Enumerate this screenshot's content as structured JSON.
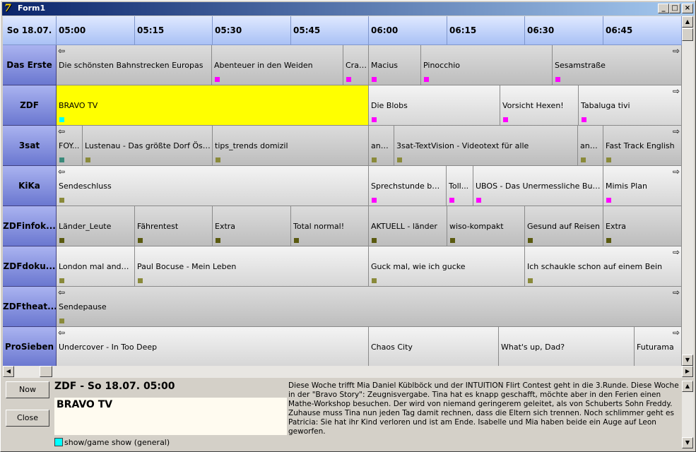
{
  "window": {
    "title": "Form1"
  },
  "grid": {
    "date": "So 18.07.",
    "times": [
      "05:00",
      "05:15",
      "05:30",
      "05:45",
      "06:00",
      "06:15",
      "06:30",
      "06:45"
    ],
    "channels": [
      {
        "name": "Das Erste",
        "left_arrow": true,
        "right_arrow": true,
        "programs": [
          {
            "title": "Die schönsten Bahnstrecken Europas",
            "marker": null,
            "shade": "dark"
          },
          {
            "title": "Abenteuer in den Weiden",
            "marker": "#ff00ff",
            "shade": "dark"
          },
          {
            "title": "Craz...",
            "marker": "#ff00ff",
            "shade": "dark"
          },
          {
            "title": "Macius",
            "marker": "#ff00ff",
            "shade": "dark"
          },
          {
            "title": "Pinocchio",
            "marker": "#ff00ff",
            "shade": "dark"
          },
          {
            "title": "Sesamstraße",
            "marker": "#ff00ff",
            "shade": "dark"
          }
        ]
      },
      {
        "name": "ZDF",
        "left_arrow": false,
        "right_arrow": true,
        "programs": [
          {
            "title": "BRAVO TV",
            "marker": "#00ffff",
            "shade": "selected"
          },
          {
            "title": "Die Blobs",
            "marker": "#ff00ff",
            "shade": "light"
          },
          {
            "title": "Vorsicht Hexen!",
            "marker": "#ff00ff",
            "shade": "light"
          },
          {
            "title": "Tabaluga tivi",
            "marker": "#ff00ff",
            "shade": "light"
          }
        ]
      },
      {
        "name": "3sat",
        "left_arrow": true,
        "right_arrow": true,
        "programs": [
          {
            "title": "FOY...",
            "marker": "#3a8a7a",
            "shade": "dark"
          },
          {
            "title": "Lustenau - Das größte Dorf Österreichs",
            "marker": "#8a8a3a",
            "shade": "dark"
          },
          {
            "title": "tips_trends domizil",
            "marker": "#8a8a3a",
            "shade": "dark"
          },
          {
            "title": "and...",
            "marker": "#8a8a3a",
            "shade": "dark"
          },
          {
            "title": "3sat-TextVision - Videotext für alle",
            "marker": "#8a8a3a",
            "shade": "dark"
          },
          {
            "title": "and...",
            "marker": "#8a8a3a",
            "shade": "dark"
          },
          {
            "title": "Fast Track English",
            "marker": "#8a8a3a",
            "shade": "dark"
          }
        ]
      },
      {
        "name": "KiKa",
        "left_arrow": true,
        "right_arrow": true,
        "programs": [
          {
            "title": "Sendeschluss",
            "marker": "#8a8a3a",
            "shade": "light"
          },
          {
            "title": "Sprechstunde bei Dr. Frankenstein",
            "marker": "#ff00ff",
            "shade": "light"
          },
          {
            "title": "Toll...",
            "marker": "#ff00ff",
            "shade": "light"
          },
          {
            "title": "UBOS - Das Unermessliche Buch der Ozeane",
            "marker": "#ff00ff",
            "shade": "light"
          },
          {
            "title": "Mimis Plan",
            "marker": "#ff00ff",
            "shade": "light"
          }
        ]
      },
      {
        "name": "ZDFinfok...",
        "left_arrow": false,
        "right_arrow": false,
        "programs": [
          {
            "title": "Länder_Leute",
            "marker": "#5a5a10",
            "shade": "dark"
          },
          {
            "title": "Fährentest",
            "marker": "#5a5a10",
            "shade": "dark"
          },
          {
            "title": "Extra",
            "marker": "#5a5a10",
            "shade": "dark"
          },
          {
            "title": "Total normal!",
            "marker": "#5a5a10",
            "shade": "dark"
          },
          {
            "title": "AKTUELL - länder",
            "marker": "#5a5a10",
            "shade": "dark"
          },
          {
            "title": "wiso-kompakt",
            "marker": "#5a5a10",
            "shade": "dark"
          },
          {
            "title": "Gesund auf Reisen",
            "marker": "#5a5a10",
            "shade": "dark"
          },
          {
            "title": "Extra",
            "marker": "#5a5a10",
            "shade": "dark"
          }
        ]
      },
      {
        "name": "ZDFdoku...",
        "left_arrow": false,
        "right_arrow": true,
        "programs": [
          {
            "title": "London mal anders!",
            "marker": "#8a8a3a",
            "shade": "light"
          },
          {
            "title": "Paul Bocuse - Mein Leben",
            "marker": "#8a8a3a",
            "shade": "light"
          },
          {
            "title": "Guck mal, wie ich gucke",
            "marker": "#8a8a3a",
            "shade": "light"
          },
          {
            "title": "Ich schaukle schon auf einem Bein",
            "marker": "#8a8a3a",
            "shade": "light"
          }
        ]
      },
      {
        "name": "ZDFtheat...",
        "left_arrow": true,
        "right_arrow": true,
        "programs": [
          {
            "title": "Sendepause",
            "marker": "#8a8a3a",
            "shade": "dark"
          }
        ]
      },
      {
        "name": "ProSieben",
        "left_arrow": true,
        "right_arrow": true,
        "programs": [
          {
            "title": "Undercover - In Too Deep",
            "marker": null,
            "shade": "light"
          },
          {
            "title": "Chaos City",
            "marker": null,
            "shade": "light"
          },
          {
            "title": "What's up, Dad?",
            "marker": null,
            "shade": "light"
          },
          {
            "title": "Futurama",
            "marker": null,
            "shade": "light"
          }
        ]
      }
    ]
  },
  "buttons": {
    "now": "Now",
    "close": "Close"
  },
  "info": {
    "header": "ZDF - So 18.07. 05:00",
    "title": "BRAVO TV",
    "genre": "show/game show (general)",
    "genre_color": "#00ffff",
    "description": "Diese Woche trifft Mia Daniel Küblböck und der INTUITION Flirt Contest geht in die 3.Runde. Diese Woche in der \"Bravo Story\": Zeugnisvergabe. Tina hat es knapp geschafft, möchte aber in den Ferien einen Mathe-Workshop besuchen. Der wird von niemand geringerem geleitet, als von Schuberts Sohn Freddy. Zuhause muss Tina nun jeden Tag damit rechnen, dass die Eltern sich trennen.  Noch schlimmer geht es Patricia: Sie hat ihr Kind verloren und ist am Ende. Isabelle und Mia haben beide ein Auge auf Leon geworfen."
  }
}
